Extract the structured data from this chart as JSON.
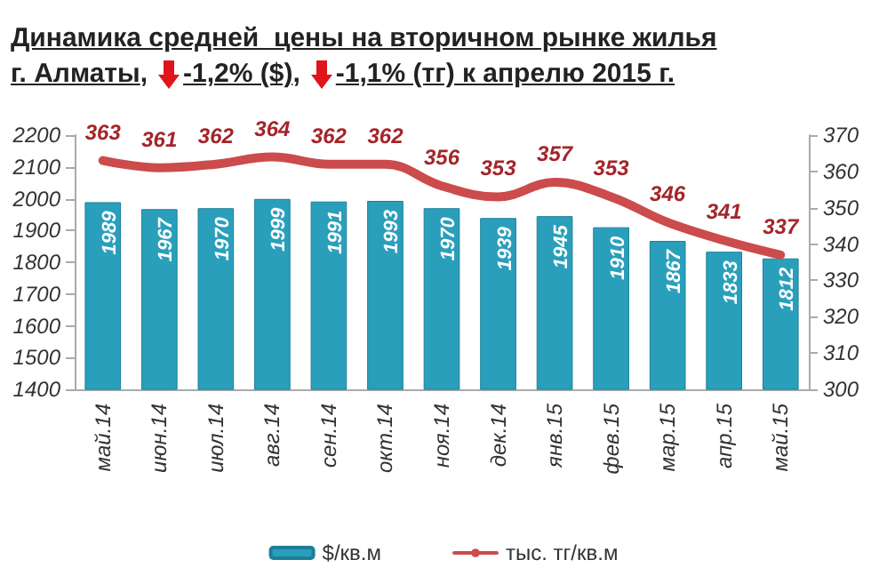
{
  "chart_data": {
    "type": "bar",
    "title": "Динамика средней  цены на вторичном рынке жилья",
    "subtitle": "г. Алматы, -1,2% ($), -1,1% (тг) к апрелю 2015 г.",
    "categories": [
      "май.14",
      "июн.14",
      "июл.14",
      "авг.14",
      "сен.14",
      "окт.14",
      "ноя.14",
      "дек.14",
      "янв.15",
      "фев.15",
      "мар.15",
      "апр.15",
      "май.15"
    ],
    "series": [
      {
        "name": "$/кв.м",
        "color": "#2a9fbb",
        "values": [
          1989,
          1967,
          1970,
          1999,
          1991,
          1993,
          1970,
          1939,
          1945,
          1910,
          1867,
          1833,
          1812
        ]
      },
      {
        "name": "тыс. тг/кв.м",
        "type": "line",
        "axis": "y2",
        "color": "#cc4b4c",
        "values": [
          363,
          361,
          362,
          364,
          362,
          362,
          356,
          353,
          357,
          353,
          346,
          341,
          337
        ]
      }
    ],
    "ylim": [
      1400,
      2200
    ],
    "yticks": [
      1400,
      1500,
      1600,
      1700,
      1800,
      1900,
      2000,
      2100,
      2200
    ],
    "y2lim": [
      300,
      370
    ],
    "y2ticks": [
      300,
      310,
      320,
      330,
      340,
      350,
      360,
      370
    ],
    "data_labels": true,
    "grid": false,
    "legend": "bottom",
    "marker": "none"
  }
}
